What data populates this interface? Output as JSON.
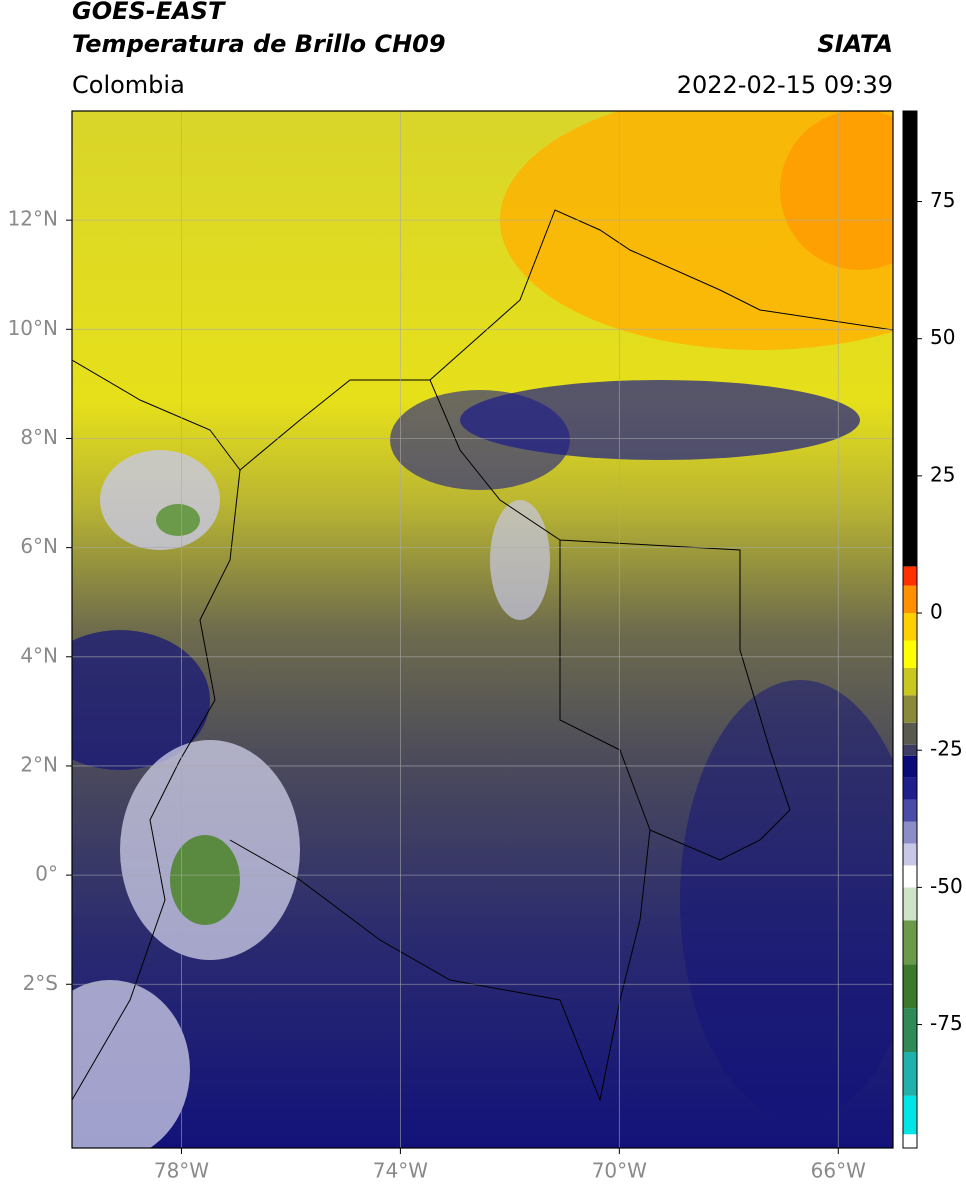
{
  "header": {
    "title": "GOES-EAST",
    "subtitle": "Temperatura de Brillo CH09",
    "source": "SIATA",
    "region": "Colombia",
    "timestamp": "2022-02-15 09:39"
  },
  "map": {
    "type": "map",
    "xlim": [
      -80,
      -65
    ],
    "ylim": [
      -5,
      14
    ],
    "grid": true,
    "xticks": [
      {
        "value": -78,
        "label": "78°W"
      },
      {
        "value": -74,
        "label": "74°W"
      },
      {
        "value": -70,
        "label": "70°W"
      },
      {
        "value": -66,
        "label": "66°W"
      }
    ],
    "yticks": [
      {
        "value": 12,
        "label": "12°N"
      },
      {
        "value": 10,
        "label": "10°N"
      },
      {
        "value": 8,
        "label": "8°N"
      },
      {
        "value": 6,
        "label": "6°N"
      },
      {
        "value": 4,
        "label": "4°N"
      },
      {
        "value": 2,
        "label": "2°N"
      },
      {
        "value": 0,
        "label": "0°"
      },
      {
        "value": -2,
        "label": "2°S"
      }
    ]
  },
  "colorbar": {
    "lim": [
      -97.5,
      91.5
    ],
    "ticks": [
      75,
      50,
      25,
      0,
      -25,
      -50,
      -75
    ],
    "levels": [
      -97.5,
      -95,
      -88,
      -80,
      -72,
      -64,
      -56,
      -50,
      -46,
      -42,
      -38,
      -34,
      -30,
      -26,
      -24,
      -20,
      -15,
      -10,
      -5,
      0,
      5,
      8.5,
      91.5
    ],
    "colors": [
      "#ffffff",
      "#00e5e5",
      "#20b2aa",
      "#2e8b57",
      "#3a7a2a",
      "#6b9a4a",
      "#cfe3c8",
      "#ffffff",
      "#c8c8e6",
      "#8c8cc8",
      "#4b4ba8",
      "#1e1e8c",
      "#0a0a78",
      "#3c3c64",
      "#5a5a50",
      "#8a8a3a",
      "#c8c820",
      "#ffff00",
      "#ffd000",
      "#ff9000",
      "#ff3000",
      "#000000"
    ]
  }
}
